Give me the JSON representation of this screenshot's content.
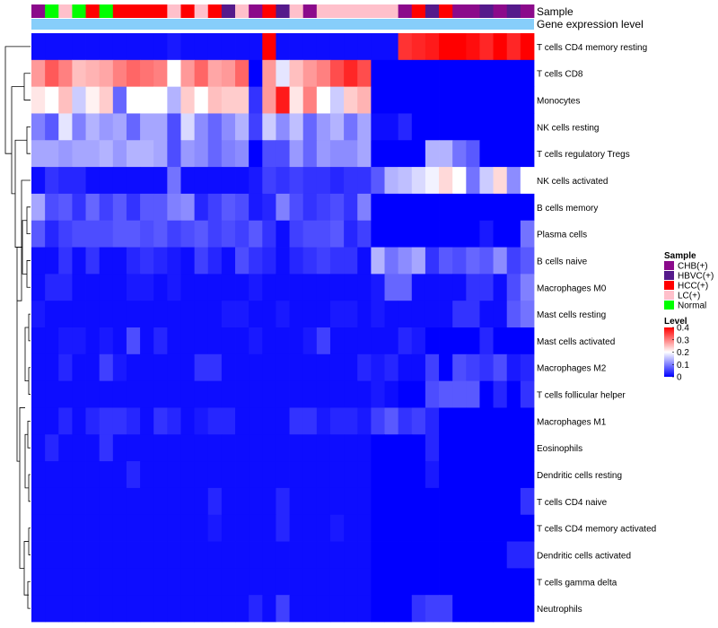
{
  "chart_data": {
    "type": "heatmap",
    "title": "",
    "annotation_labels": {
      "sample": "Sample",
      "gene_expression": "Gene expression level"
    },
    "sample_colors": {
      "CHB(+)": "#8B0A8B",
      "HBVC(+)": "#551A8B",
      "HCC(+)": "#FF0000",
      "LC(+)": "#FFC0CB",
      "Normal": "#00FF00"
    },
    "gene_expression_color": "#87CEFA",
    "samples": [
      "CHB(+)",
      "Normal",
      "LC(+)",
      "Normal",
      "HCC(+)",
      "Normal",
      "HCC(+)",
      "HCC(+)",
      "HCC(+)",
      "HCC(+)",
      "LC(+)",
      "HCC(+)",
      "LC(+)",
      "HCC(+)",
      "HBVC(+)",
      "LC(+)",
      "CHB(+)",
      "HCC(+)",
      "HBVC(+)",
      "LC(+)",
      "CHB(+)",
      "LC(+)",
      "LC(+)",
      "LC(+)",
      "LC(+)",
      "LC(+)",
      "LC(+)",
      "CHB(+)",
      "HCC(+)",
      "HBVC(+)",
      "HCC(+)",
      "CHB(+)",
      "CHB(+)",
      "HBVC(+)",
      "CHB(+)",
      "HBVC(+)",
      "CHB(+)"
    ],
    "rows": [
      "T cells CD4 memory resting",
      "T cells CD8",
      "Monocytes",
      "NK cells resting",
      "T cells regulatory  Tregs",
      "NK cells activated",
      "B cells memory",
      "Plasma cells",
      "B cells naive",
      "Macrophages M0",
      "Mast cells resting",
      "Mast cells activated",
      "Macrophages M2",
      "T cells follicular helper",
      "Macrophages M1",
      "Eosinophils",
      "Dendritic cells resting",
      "T cells CD4 naive",
      "T cells CD4 memory activated",
      "Dendritic cells activated",
      "T cells gamma delta",
      "Neutrophils"
    ],
    "values": [
      [
        0.01,
        0.01,
        0.01,
        0.01,
        0.01,
        0.01,
        0.01,
        0.01,
        0.01,
        0.01,
        0.02,
        0.01,
        0.01,
        0.01,
        0.01,
        0.01,
        0.01,
        0.4,
        0.01,
        0.01,
        0.01,
        0.01,
        0.01,
        0.01,
        0.01,
        0.01,
        0.01,
        0.36,
        0.37,
        0.38,
        0.4,
        0.4,
        0.39,
        0.37,
        0.4,
        0.37,
        0.4
      ],
      [
        0.28,
        0.33,
        0.3,
        0.25,
        0.26,
        0.27,
        0.3,
        0.32,
        0.31,
        0.3,
        0.2,
        0.28,
        0.32,
        0.27,
        0.28,
        0.32,
        0.0,
        0.28,
        0.18,
        0.25,
        0.28,
        0.3,
        0.34,
        0.37,
        0.34,
        0.0,
        0.0,
        0.0,
        0.0,
        0.0,
        0.0,
        0.0,
        0.0,
        0.0,
        0.0,
        0.0,
        0.0
      ],
      [
        0.22,
        0.2,
        0.25,
        0.16,
        0.21,
        0.24,
        0.08,
        0.2,
        0.2,
        0.2,
        0.14,
        0.24,
        0.2,
        0.25,
        0.24,
        0.24,
        0.04,
        0.28,
        0.38,
        0.22,
        0.3,
        0.2,
        0.16,
        0.24,
        0.26,
        0.0,
        0.0,
        0.0,
        0.0,
        0.0,
        0.0,
        0.0,
        0.0,
        0.0,
        0.0,
        0.0,
        0.0
      ],
      [
        0.1,
        0.07,
        0.18,
        0.1,
        0.14,
        0.12,
        0.13,
        0.08,
        0.13,
        0.13,
        0.06,
        0.17,
        0.11,
        0.08,
        0.11,
        0.14,
        0.05,
        0.16,
        0.11,
        0.15,
        0.08,
        0.12,
        0.14,
        0.09,
        0.13,
        0.01,
        0.01,
        0.03,
        0.0,
        0.0,
        0.0,
        0.0,
        0.0,
        0.0,
        0.0,
        0.0,
        0.0
      ],
      [
        0.13,
        0.13,
        0.12,
        0.13,
        0.13,
        0.14,
        0.12,
        0.14,
        0.14,
        0.13,
        0.06,
        0.12,
        0.11,
        0.08,
        0.1,
        0.11,
        0.0,
        0.06,
        0.06,
        0.12,
        0.08,
        0.12,
        0.11,
        0.11,
        0.13,
        0.0,
        0.0,
        0.0,
        0.0,
        0.14,
        0.14,
        0.09,
        0.07,
        0.0,
        0.0,
        0.0,
        0.0
      ],
      [
        0.01,
        0.04,
        0.03,
        0.03,
        0.01,
        0.01,
        0.01,
        0.01,
        0.01,
        0.01,
        0.09,
        0.01,
        0.01,
        0.01,
        0.01,
        0.01,
        0.02,
        0.05,
        0.04,
        0.05,
        0.04,
        0.04,
        0.03,
        0.04,
        0.04,
        0.07,
        0.14,
        0.15,
        0.17,
        0.19,
        0.23,
        0.2,
        0.09,
        0.16,
        0.23,
        0.11,
        0.2
      ],
      [
        0.13,
        0.06,
        0.07,
        0.04,
        0.08,
        0.05,
        0.07,
        0.04,
        0.07,
        0.07,
        0.1,
        0.11,
        0.03,
        0.05,
        0.07,
        0.06,
        0.02,
        0.03,
        0.1,
        0.06,
        0.04,
        0.05,
        0.06,
        0.04,
        0.1,
        0.0,
        0.0,
        0.0,
        0.0,
        0.0,
        0.0,
        0.0,
        0.0,
        0.0,
        0.0,
        0.0,
        0.0
      ],
      [
        0.07,
        0.03,
        0.05,
        0.06,
        0.06,
        0.06,
        0.07,
        0.07,
        0.06,
        0.07,
        0.05,
        0.06,
        0.07,
        0.05,
        0.06,
        0.05,
        0.07,
        0.04,
        0.01,
        0.05,
        0.06,
        0.06,
        0.07,
        0.03,
        0.05,
        0.0,
        0.0,
        0.0,
        0.0,
        0.0,
        0.0,
        0.0,
        0.0,
        0.02,
        0.0,
        0.0,
        0.09
      ],
      [
        0.01,
        0.01,
        0.04,
        0.01,
        0.04,
        0.01,
        0.01,
        0.03,
        0.04,
        0.03,
        0.02,
        0.01,
        0.05,
        0.03,
        0.01,
        0.06,
        0.04,
        0.03,
        0.01,
        0.03,
        0.04,
        0.05,
        0.04,
        0.04,
        0.01,
        0.14,
        0.09,
        0.11,
        0.13,
        0.04,
        0.07,
        0.06,
        0.08,
        0.07,
        0.11,
        0.05,
        0.07
      ],
      [
        0.01,
        0.03,
        0.03,
        0.01,
        0.01,
        0.01,
        0.01,
        0.02,
        0.02,
        0.01,
        0.02,
        0.01,
        0.01,
        0.01,
        0.01,
        0.01,
        0.02,
        0.01,
        0.01,
        0.01,
        0.01,
        0.01,
        0.01,
        0.01,
        0.01,
        0.02,
        0.08,
        0.08,
        0.01,
        0.01,
        0.01,
        0.01,
        0.04,
        0.04,
        0.01,
        0.06,
        0.1
      ],
      [
        0.02,
        0.01,
        0.01,
        0.01,
        0.01,
        0.01,
        0.01,
        0.01,
        0.01,
        0.01,
        0.01,
        0.01,
        0.01,
        0.01,
        0.02,
        0.02,
        0.01,
        0.01,
        0.02,
        0.01,
        0.01,
        0.01,
        0.02,
        0.02,
        0.01,
        0.02,
        0.01,
        0.01,
        0.01,
        0.01,
        0.01,
        0.04,
        0.04,
        0.01,
        0.01,
        0.07,
        0.09
      ],
      [
        0.01,
        0.01,
        0.02,
        0.02,
        0.01,
        0.02,
        0.01,
        0.06,
        0.01,
        0.03,
        0.01,
        0.01,
        0.01,
        0.01,
        0.01,
        0.01,
        0.02,
        0.01,
        0.01,
        0.01,
        0.02,
        0.05,
        0.01,
        0.01,
        0.01,
        0.01,
        0.01,
        0.03,
        0.02,
        0.0,
        0.0,
        0.0,
        0.0,
        0.03,
        0.0,
        0.0,
        0.0
      ],
      [
        0.01,
        0.01,
        0.03,
        0.01,
        0.01,
        0.05,
        0.02,
        0.01,
        0.01,
        0.01,
        0.01,
        0.01,
        0.04,
        0.04,
        0.01,
        0.01,
        0.01,
        0.01,
        0.01,
        0.01,
        0.01,
        0.01,
        0.01,
        0.01,
        0.03,
        0.02,
        0.03,
        0.01,
        0.01,
        0.05,
        0.0,
        0.06,
        0.05,
        0.04,
        0.06,
        0.02,
        0.03
      ],
      [
        0.01,
        0.01,
        0.01,
        0.01,
        0.01,
        0.01,
        0.01,
        0.01,
        0.01,
        0.01,
        0.01,
        0.01,
        0.01,
        0.01,
        0.01,
        0.01,
        0.01,
        0.01,
        0.01,
        0.01,
        0.01,
        0.01,
        0.01,
        0.01,
        0.01,
        0.02,
        0.01,
        0.0,
        0.0,
        0.06,
        0.07,
        0.07,
        0.07,
        0.0,
        0.03,
        0.0,
        0.04
      ],
      [
        0.01,
        0.01,
        0.03,
        0.01,
        0.03,
        0.04,
        0.04,
        0.03,
        0.01,
        0.04,
        0.03,
        0.01,
        0.02,
        0.03,
        0.03,
        0.01,
        0.01,
        0.01,
        0.01,
        0.04,
        0.04,
        0.02,
        0.03,
        0.03,
        0.02,
        0.05,
        0.07,
        0.04,
        0.05,
        0.03,
        0.0,
        0.0,
        0.0,
        0.0,
        0.0,
        0.0,
        0.0
      ],
      [
        0.01,
        0.03,
        0.01,
        0.01,
        0.01,
        0.04,
        0.01,
        0.01,
        0.01,
        0.01,
        0.01,
        0.01,
        0.01,
        0.01,
        0.01,
        0.01,
        0.01,
        0.01,
        0.01,
        0.01,
        0.01,
        0.01,
        0.01,
        0.01,
        0.01,
        0.0,
        0.0,
        0.0,
        0.0,
        0.03,
        0.0,
        0.0,
        0.0,
        0.0,
        0.0,
        0.0,
        0.0
      ],
      [
        0.01,
        0.01,
        0.01,
        0.01,
        0.01,
        0.01,
        0.01,
        0.03,
        0.01,
        0.01,
        0.01,
        0.01,
        0.01,
        0.01,
        0.01,
        0.01,
        0.01,
        0.01,
        0.01,
        0.01,
        0.01,
        0.01,
        0.01,
        0.01,
        0.01,
        0.0,
        0.0,
        0.0,
        0.0,
        0.02,
        0.0,
        0.0,
        0.0,
        0.0,
        0.0,
        0.0,
        0.0
      ],
      [
        0.01,
        0.01,
        0.01,
        0.01,
        0.01,
        0.01,
        0.01,
        0.01,
        0.01,
        0.01,
        0.01,
        0.01,
        0.01,
        0.03,
        0.01,
        0.01,
        0.01,
        0.01,
        0.03,
        0.01,
        0.01,
        0.01,
        0.01,
        0.01,
        0.01,
        0.0,
        0.0,
        0.0,
        0.0,
        0.0,
        0.0,
        0.0,
        0.0,
        0.0,
        0.0,
        0.0,
        0.04
      ],
      [
        0.01,
        0.01,
        0.01,
        0.01,
        0.01,
        0.01,
        0.01,
        0.01,
        0.01,
        0.01,
        0.01,
        0.01,
        0.01,
        0.02,
        0.01,
        0.01,
        0.01,
        0.01,
        0.03,
        0.01,
        0.01,
        0.01,
        0.02,
        0.01,
        0.01,
        0.0,
        0.0,
        0.0,
        0.0,
        0.0,
        0.0,
        0.0,
        0.0,
        0.0,
        0.0,
        0.0,
        0.0
      ],
      [
        0.01,
        0.01,
        0.01,
        0.01,
        0.01,
        0.01,
        0.01,
        0.01,
        0.01,
        0.01,
        0.01,
        0.01,
        0.01,
        0.01,
        0.01,
        0.01,
        0.01,
        0.01,
        0.01,
        0.01,
        0.01,
        0.01,
        0.01,
        0.01,
        0.01,
        0.0,
        0.0,
        0.0,
        0.0,
        0.0,
        0.0,
        0.0,
        0.0,
        0.0,
        0.0,
        0.03,
        0.03
      ],
      [
        0.01,
        0.01,
        0.01,
        0.01,
        0.01,
        0.01,
        0.01,
        0.01,
        0.01,
        0.01,
        0.01,
        0.01,
        0.01,
        0.01,
        0.01,
        0.01,
        0.01,
        0.01,
        0.01,
        0.01,
        0.01,
        0.01,
        0.01,
        0.01,
        0.01,
        0.0,
        0.0,
        0.0,
        0.0,
        0.0,
        0.0,
        0.0,
        0.0,
        0.0,
        0.0,
        0.0,
        0.0
      ],
      [
        0.01,
        0.01,
        0.01,
        0.01,
        0.01,
        0.01,
        0.01,
        0.01,
        0.01,
        0.01,
        0.01,
        0.01,
        0.01,
        0.01,
        0.01,
        0.01,
        0.03,
        0.01,
        0.05,
        0.01,
        0.01,
        0.01,
        0.01,
        0.01,
        0.01,
        0.0,
        0.0,
        0.0,
        0.04,
        0.05,
        0.05,
        0.0,
        0.0,
        0.0,
        0.0,
        0.0,
        0.0
      ]
    ],
    "color_scale": {
      "min": 0,
      "max": 0.4,
      "colors": [
        "#0000FF",
        "#FFFFFF",
        "#FF0000"
      ]
    },
    "legend": {
      "sample_title": "Sample",
      "sample_entries": [
        {
          "label": "CHB(+)",
          "color": "#8B0A8B"
        },
        {
          "label": "HBVC(+)",
          "color": "#551A8B"
        },
        {
          "label": "HCC(+)",
          "color": "#FF0000"
        },
        {
          "label": "LC(+)",
          "color": "#FFC0CB"
        },
        {
          "label": "Normal",
          "color": "#00FF00"
        }
      ],
      "level_title": "Level",
      "level_ticks": [
        0.4,
        0.3,
        0.2,
        0.1,
        0
      ],
      "position": "right"
    },
    "dendrogram": {
      "side": "left",
      "leaves": 22
    }
  }
}
